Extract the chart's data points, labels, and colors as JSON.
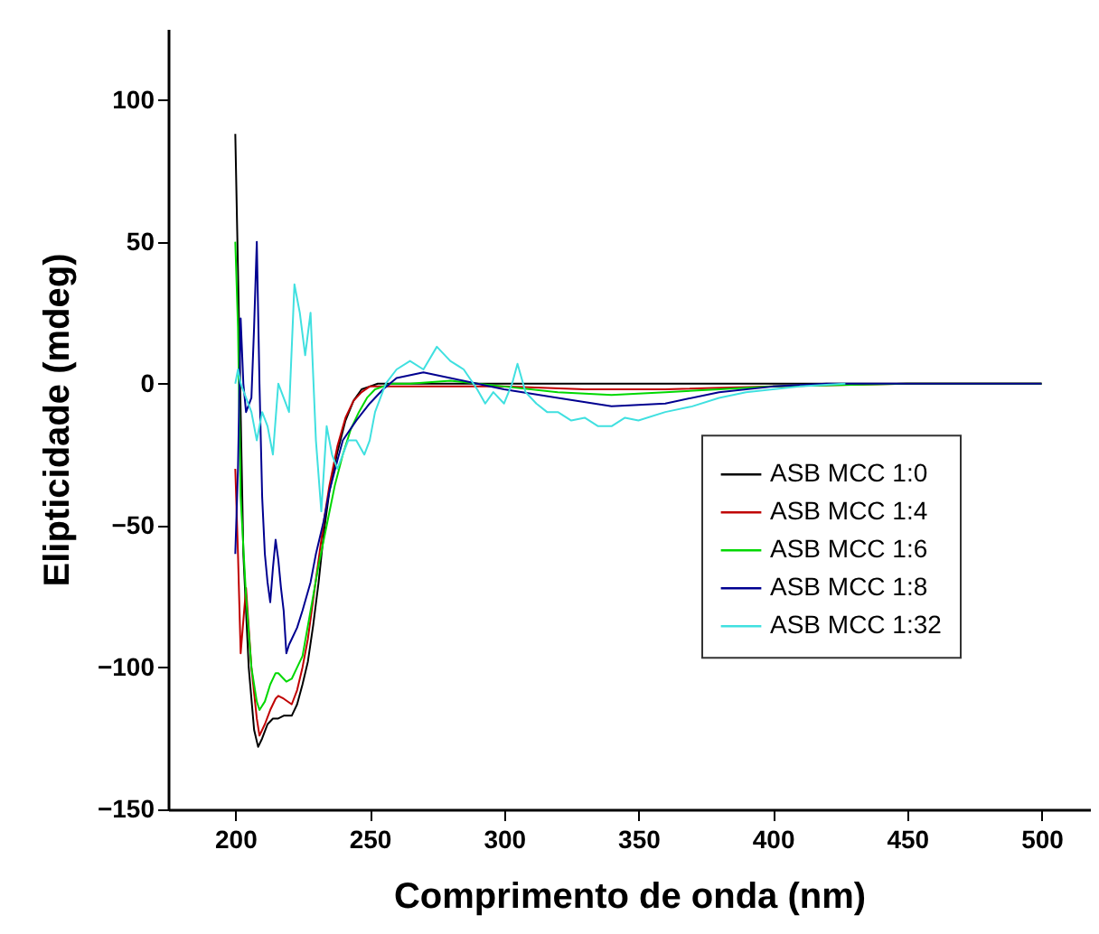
{
  "chart_data": {
    "type": "line",
    "xlabel": "Comprimento de onda (nm)",
    "ylabel": "Elipticidade (mdeg)",
    "xlim": [
      175,
      518
    ],
    "ylim": [
      -150,
      125
    ],
    "xticks": [
      200,
      250,
      300,
      350,
      400,
      450,
      500
    ],
    "yticks": [
      -150,
      -100,
      -50,
      0,
      50,
      100
    ],
    "grid": false,
    "legend": "right",
    "line_style": "solid",
    "series": [
      {
        "name": "ASB MCC 1:0",
        "color": "#000000",
        "x": [
          200,
          201,
          203,
          205,
          207,
          208.5,
          210,
          212,
          214,
          216,
          218,
          221,
          223,
          225,
          227,
          229,
          231,
          233,
          235,
          238,
          241,
          244,
          247,
          250,
          253,
          256,
          260,
          280,
          300,
          350,
          400,
          450,
          500
        ],
        "values": [
          88,
          40,
          -60,
          -100,
          -122,
          -128,
          -125,
          -120,
          -118,
          -118,
          -117,
          -117,
          -113,
          -106,
          -98,
          -85,
          -70,
          -52,
          -38,
          -24,
          -13,
          -6,
          -2,
          -1,
          0,
          0,
          0,
          0,
          0,
          0,
          0,
          0,
          0
        ]
      },
      {
        "name": "ASB MCC 1:4",
        "color": "#c00000",
        "x": [
          200,
          201,
          202,
          204,
          206,
          208,
          209,
          211,
          213,
          215,
          216,
          218,
          221,
          223,
          225,
          227,
          229,
          231,
          233,
          235,
          238,
          241,
          244,
          247,
          250,
          254,
          258,
          270,
          300,
          330,
          360,
          400,
          450,
          500
        ],
        "values": [
          -30,
          -60,
          -95,
          -72,
          -100,
          -118,
          -124,
          -120,
          -115,
          -111,
          -110,
          -111,
          -113,
          -108,
          -100,
          -90,
          -76,
          -62,
          -48,
          -36,
          -22,
          -12,
          -6,
          -3,
          -1,
          -1,
          -1,
          -1,
          -1,
          -2,
          -2,
          -1,
          0,
          0
        ]
      },
      {
        "name": "ASB MCC 1:6",
        "color": "#00d800",
        "x": [
          200,
          201,
          202,
          204,
          206,
          208,
          209,
          211,
          213,
          215,
          216,
          218,
          219,
          221,
          223,
          225,
          228,
          231,
          234,
          237,
          240,
          243,
          246,
          249,
          252,
          255,
          258,
          265,
          280,
          300,
          320,
          340,
          360,
          380,
          400,
          450,
          500
        ],
        "values": [
          50,
          20,
          -40,
          -75,
          -100,
          -112,
          -115,
          -112,
          -106,
          -102,
          -102,
          -104,
          -105,
          -104,
          -100,
          -96,
          -80,
          -64,
          -50,
          -36,
          -25,
          -16,
          -10,
          -5,
          -2,
          -1,
          0,
          0,
          1,
          -1,
          -3,
          -4,
          -3,
          -2,
          -1,
          0,
          0
        ]
      },
      {
        "name": "ASB MCC 1:8",
        "color": "#000090",
        "x": [
          200,
          201,
          202,
          203,
          204,
          206,
          207,
          208,
          209,
          210,
          211,
          212,
          213,
          214,
          215,
          216,
          217,
          218,
          219,
          220,
          221,
          223,
          225,
          228,
          230,
          233,
          235,
          238,
          240,
          245,
          250,
          255,
          260,
          270,
          280,
          290,
          300,
          320,
          340,
          360,
          380,
          400,
          420,
          450,
          500
        ],
        "values": [
          -60,
          -30,
          23,
          0,
          -10,
          -5,
          20,
          50,
          0,
          -40,
          -60,
          -70,
          -77,
          -65,
          -55,
          -62,
          -72,
          -80,
          -95,
          -92,
          -90,
          -86,
          -80,
          -70,
          -60,
          -48,
          -38,
          -27,
          -20,
          -13,
          -7,
          -2,
          2,
          4,
          2,
          0,
          -2,
          -5,
          -8,
          -7,
          -3,
          -1,
          0,
          0,
          0
        ]
      },
      {
        "name": "ASB MCC 1:32",
        "color": "#40e0e0",
        "x": [
          200,
          201,
          202,
          204,
          206,
          208,
          210,
          212,
          214,
          216,
          218,
          220,
          222,
          224,
          226,
          228,
          230,
          232,
          234,
          236,
          238,
          240,
          242,
          245,
          248,
          250,
          252,
          256,
          260,
          265,
          270,
          275,
          280,
          285,
          290,
          293,
          296,
          300,
          303,
          305,
          308,
          312,
          316,
          320,
          325,
          330,
          335,
          340,
          345,
          350,
          360,
          370,
          380,
          390,
          400,
          410,
          427
        ],
        "values": [
          0,
          5,
          0,
          -5,
          -10,
          -20,
          -10,
          -15,
          -25,
          0,
          -5,
          -10,
          35,
          25,
          10,
          25,
          -20,
          -45,
          -15,
          -25,
          -30,
          -25,
          -20,
          -20,
          -25,
          -20,
          -10,
          0,
          5,
          8,
          5,
          13,
          8,
          5,
          -2,
          -7,
          -3,
          -7,
          0,
          7,
          -3,
          -7,
          -10,
          -10,
          -13,
          -12,
          -15,
          -15,
          -12,
          -13,
          -10,
          -8,
          -5,
          -3,
          -2,
          -1,
          0
        ]
      }
    ]
  }
}
